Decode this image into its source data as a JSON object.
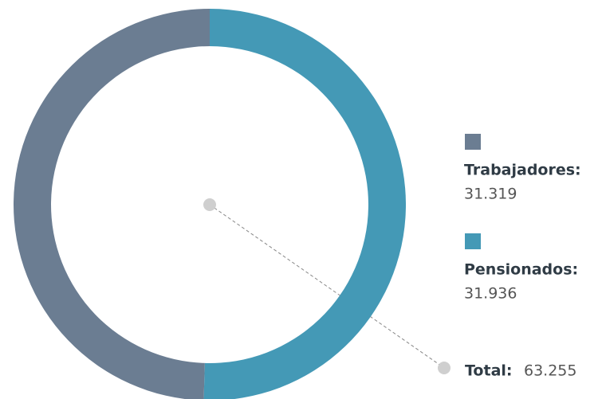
{
  "chart_data": {
    "type": "donut",
    "categories": [
      "Trabajadores:",
      "Pensionados:"
    ],
    "values": [
      31319,
      31936
    ],
    "value_labels": [
      "31.319",
      "31.936"
    ],
    "colors": [
      "#6b7d92",
      "#4499b6"
    ],
    "total": {
      "name": "Total:",
      "value": 63255,
      "label": "63.255"
    }
  }
}
